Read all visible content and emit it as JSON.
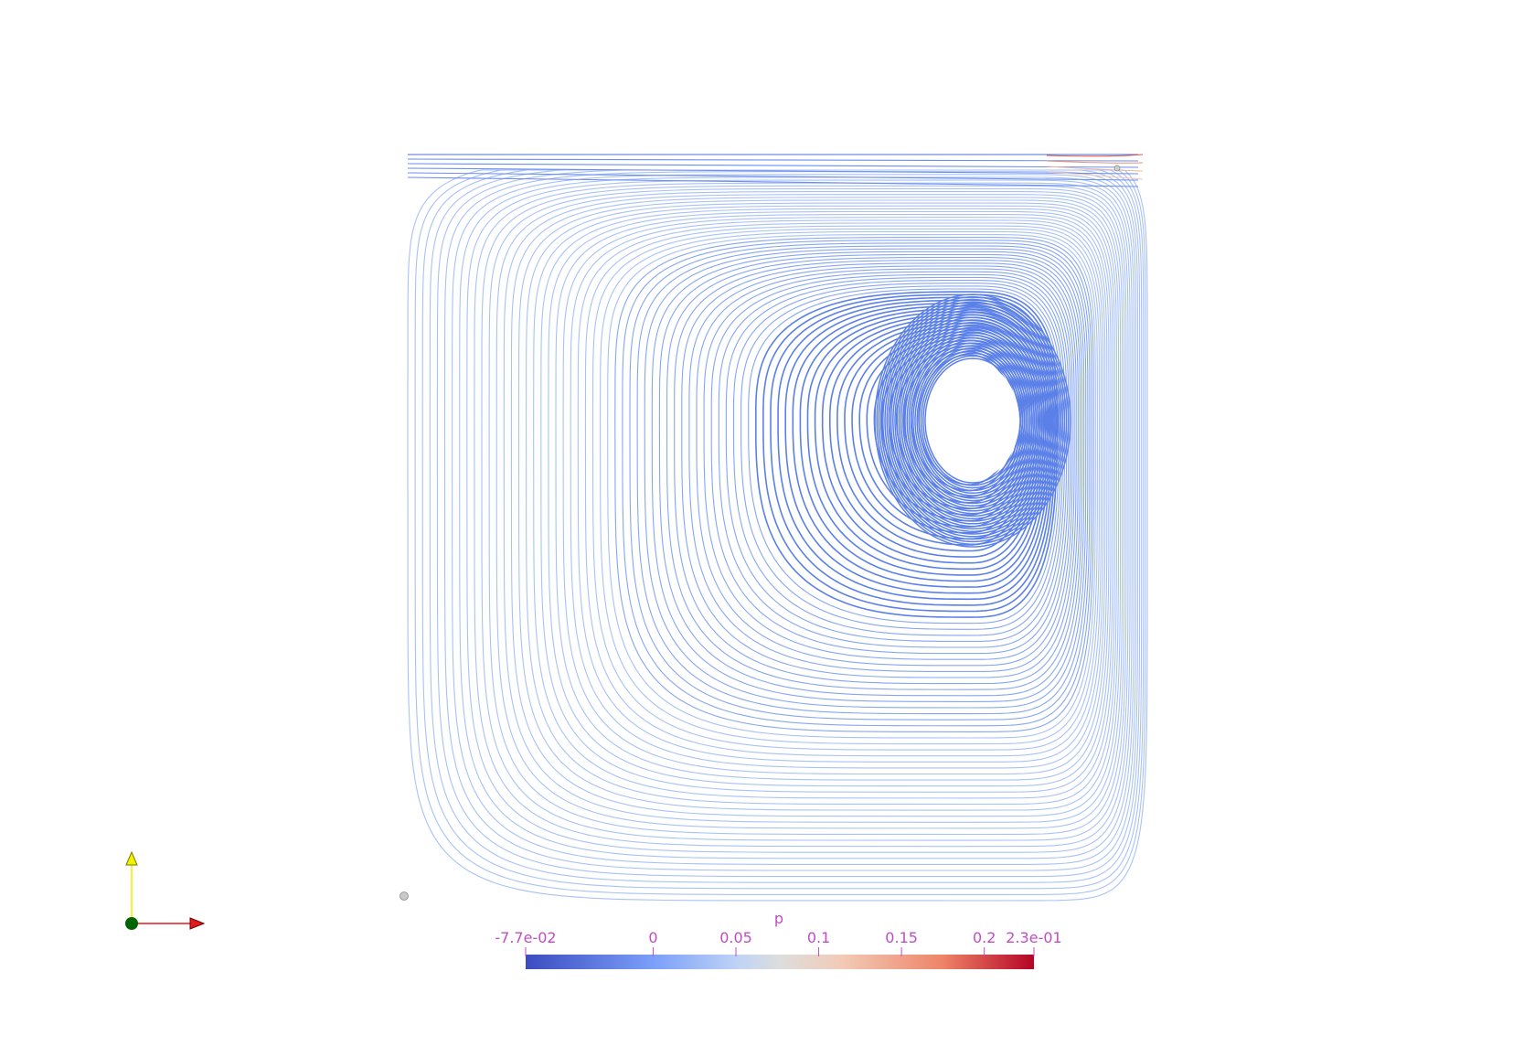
{
  "visualization": {
    "type": "streamlines",
    "description_field": "p",
    "background": "#ffffff",
    "vortex_core_color": "#5b80e8"
  },
  "scalar_bar": {
    "title": "p",
    "min": -0.077,
    "max": 0.23,
    "tick_labels": [
      "-7.7e-02",
      "0",
      "0.05",
      "0.1",
      "0.15",
      "0.2",
      "2.3e-01"
    ],
    "tick_values": [
      -0.077,
      0,
      0.05,
      0.1,
      0.15,
      0.2,
      0.23
    ],
    "label_color": "#c04cc4",
    "colormap": [
      "#3b4cc0",
      "#7b9ff9",
      "#c0d4f5",
      "#dddddd",
      "#f2cbb7",
      "#ee8468",
      "#b40426"
    ]
  },
  "orientation_axes": {
    "x_color": "#e31a1c",
    "y_color": "#f2f200",
    "origin_color": "#006400"
  }
}
